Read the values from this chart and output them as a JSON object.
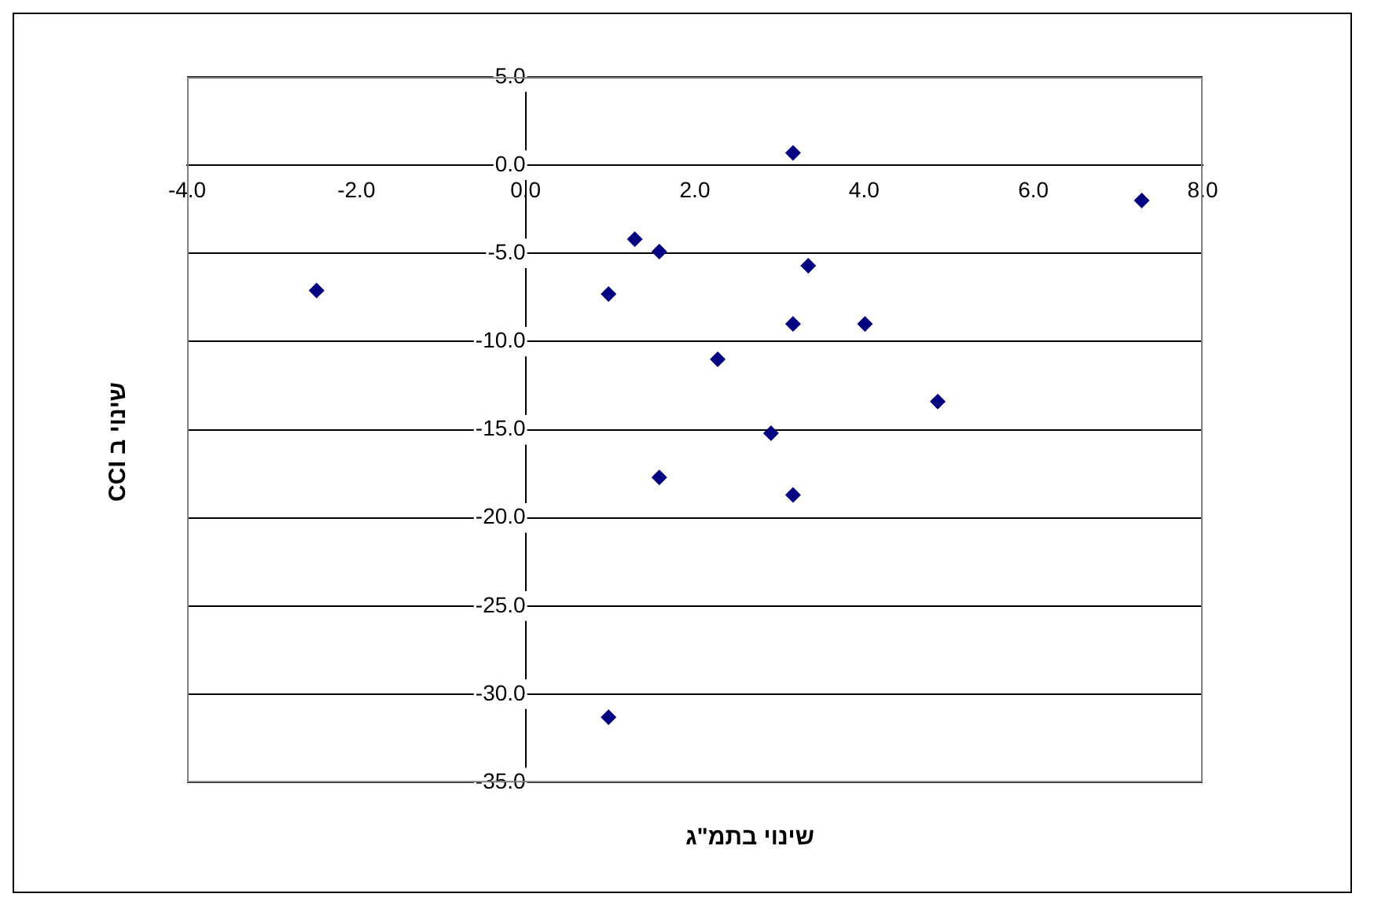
{
  "chart_data": {
    "type": "scatter",
    "xlabel": "שינוי בתמ\"ג",
    "ylabel": "שינוי ב CCI",
    "x": [
      -2.47,
      0.98,
      1.29,
      1.58,
      1.58,
      0.98,
      2.27,
      2.9,
      3.16,
      3.16,
      3.16,
      3.34,
      4.01,
      4.87,
      7.28
    ],
    "series": [
      {
        "color": "#000080",
        "values": [
          -7.1,
          -7.3,
          -4.2,
          -4.9,
          -17.7,
          -31.3,
          -11.0,
          -15.2,
          0.7,
          -9.0,
          -18.7,
          -5.7,
          -9.0,
          -13.4,
          -2.0
        ]
      }
    ],
    "xlim": [
      -4,
      8
    ],
    "xticks": [
      {
        "value": -4,
        "label": "-4.0"
      },
      {
        "value": -2,
        "label": "-2.0"
      },
      {
        "value": 0,
        "label": "0.0"
      },
      {
        "value": 2,
        "label": "2.0"
      },
      {
        "value": 4,
        "label": "4.0"
      },
      {
        "value": 6,
        "label": "6.0"
      },
      {
        "value": 8,
        "label": "8.0"
      }
    ],
    "ylim": [
      -35,
      5
    ],
    "yticks": [
      {
        "value": -35,
        "label": "-35.0"
      },
      {
        "value": -30,
        "label": "-30.0"
      },
      {
        "value": -25,
        "label": "-25.0"
      },
      {
        "value": -20,
        "label": "-20.0"
      },
      {
        "value": -15,
        "label": "-15.0"
      },
      {
        "value": -10,
        "label": "-10.0"
      },
      {
        "value": -5,
        "label": "-5.0"
      },
      {
        "value": 0,
        "label": "0.0"
      },
      {
        "value": 5,
        "label": "5.0"
      }
    ],
    "grid": "y",
    "legend": false,
    "marker": "diamond"
  }
}
